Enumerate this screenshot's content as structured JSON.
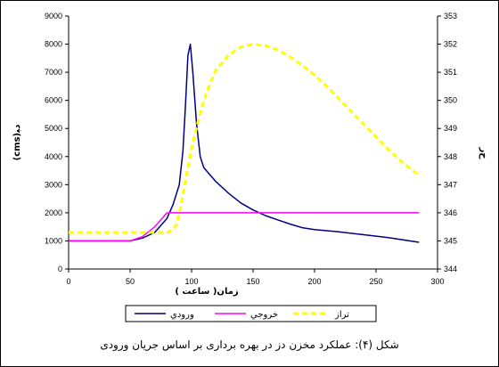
{
  "chart_data": {
    "type": "line",
    "caption": "شکل (۴): عملکرد مخزن دز در بهره برداری بر اساس جریان ورودی",
    "xlabel": "زمان(   ساعت )",
    "ylabel_left": "(cms)ﺩﺒ",
    "ylabel_right": "ﺡﺭ",
    "xlim": [
      0,
      300
    ],
    "ylim_left": [
      0,
      9000
    ],
    "ylim_right": [
      344,
      353
    ],
    "x_ticks": [
      0,
      50,
      100,
      150,
      200,
      250,
      300
    ],
    "y_left_ticks": [
      0,
      1000,
      2000,
      3000,
      4000,
      5000,
      6000,
      7000,
      8000,
      9000
    ],
    "y_right_ticks": [
      344,
      345,
      346,
      347,
      348,
      349,
      350,
      351,
      352,
      353
    ],
    "legend_position": "bottom",
    "series": [
      {
        "name": "ورودي",
        "axis": "left",
        "color": "#000080",
        "style": "solid",
        "x": [
          0,
          50,
          60,
          70,
          80,
          85,
          90,
          93,
          95,
          97,
          99,
          101,
          104,
          107,
          110,
          120,
          130,
          140,
          150,
          160,
          170,
          180,
          190,
          200,
          220,
          240,
          260,
          285
        ],
        "y": [
          1000,
          1000,
          1100,
          1300,
          1800,
          2300,
          3000,
          4200,
          5800,
          7600,
          8000,
          7000,
          5200,
          4000,
          3600,
          3100,
          2700,
          2350,
          2100,
          1900,
          1750,
          1600,
          1470,
          1400,
          1320,
          1220,
          1120,
          950
        ]
      },
      {
        "name": "خروجي",
        "axis": "left",
        "color": "#ff00ff",
        "style": "solid",
        "x": [
          0,
          50,
          60,
          70,
          78,
          80,
          285
        ],
        "y": [
          1000,
          1000,
          1150,
          1500,
          1900,
          2000,
          2000
        ]
      },
      {
        "name": "تراز",
        "axis": "right",
        "color": "#ffff00",
        "style": "dashed",
        "x": [
          0,
          80,
          85,
          88,
          91,
          94,
          97,
          100,
          105,
          110,
          115,
          120,
          130,
          140,
          150,
          160,
          170,
          180,
          190,
          200,
          210,
          220,
          230,
          240,
          250,
          260,
          270,
          280,
          285
        ],
        "y": [
          345.3,
          345.3,
          345.4,
          345.6,
          346.2,
          346.9,
          347.6,
          348.3,
          349.2,
          350.0,
          350.6,
          351.1,
          351.6,
          351.9,
          352.0,
          351.95,
          351.8,
          351.55,
          351.25,
          350.9,
          350.5,
          350.05,
          349.6,
          349.15,
          348.7,
          348.25,
          347.85,
          347.5,
          347.35
        ]
      }
    ]
  }
}
